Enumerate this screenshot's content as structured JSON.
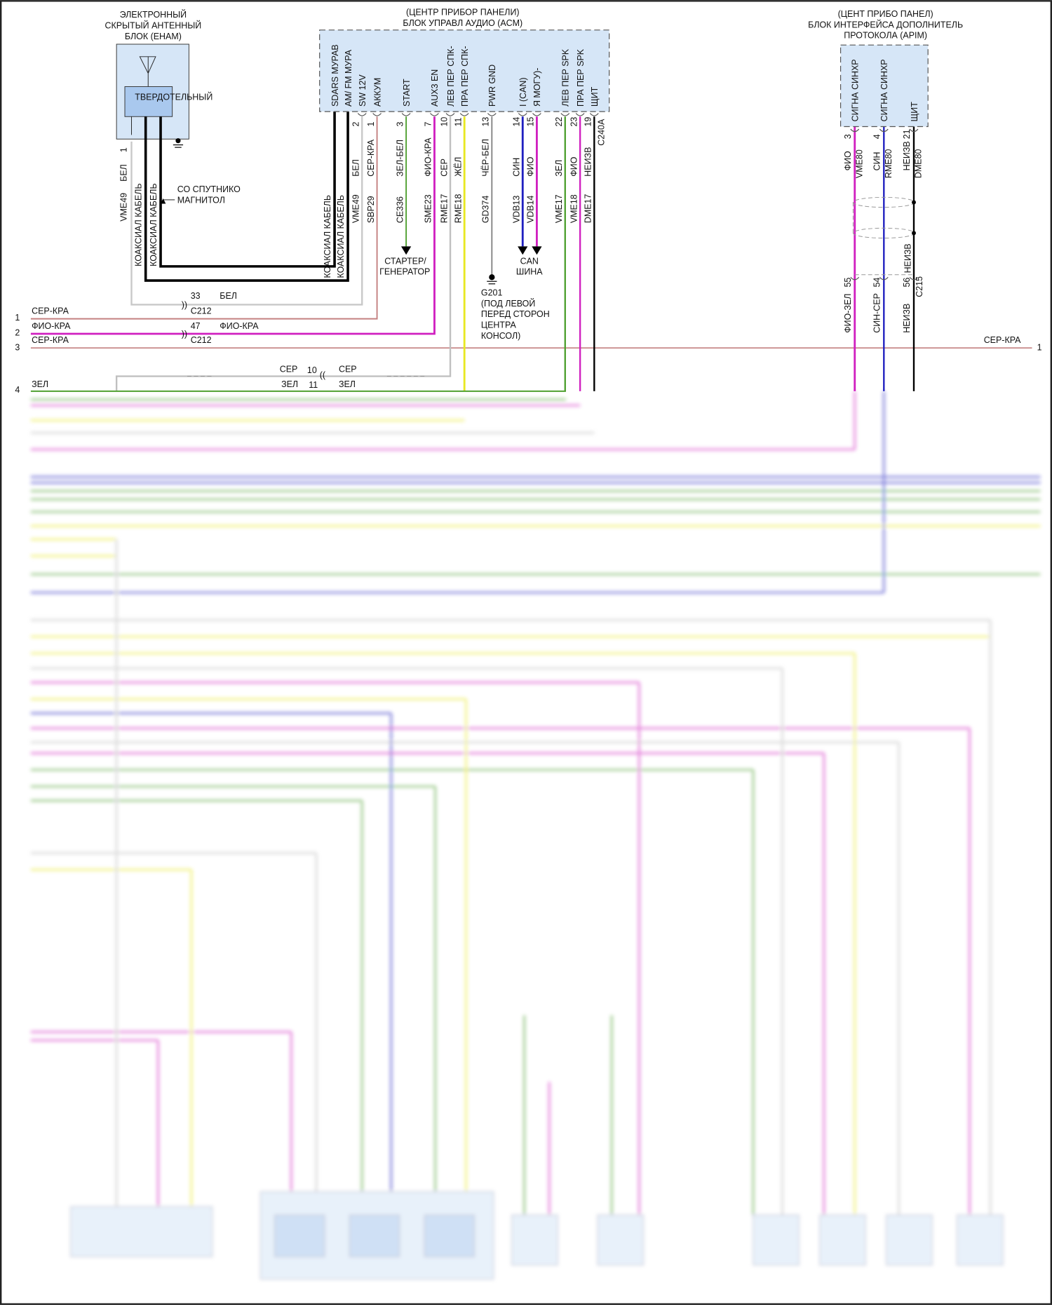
{
  "colors": {
    "module_fill": "#d6e6f7",
    "wire_pink": "#c48080",
    "wire_magenta": "#d020c0",
    "wire_green": "#4fa030",
    "wire_yellow": "#e8e820",
    "wire_gray": "#c0c0c0",
    "wire_blue": "#2020c0",
    "wire_black": "#000000"
  },
  "enham": {
    "title": [
      "ЭЛЕКТРОННЫЙ",
      "СКРЫТЫЙ АНТЕННЫЙ",
      "БЛОК (ЕНАМ)"
    ],
    "inner": "ТВЕРДОТЕЛЬНЫЙ",
    "pin": "1",
    "color": "БЕЛ",
    "circuit": "VME49",
    "coax1": "КОАКСИАЛ КАБЕЛЬ",
    "coax2": "КОАКСИАЛ КАБЕЛЬ",
    "from_label": [
      "СО СПУТНИКО",
      "МАГНИТОЛ"
    ],
    "icons": [
      "antenna-icon",
      "ground-icon"
    ]
  },
  "acm": {
    "title": [
      "(ЦЕНТР ПРИБОР ПАНЕЛИ)",
      "БЛОК УПРАВЛ АУДИО (ACM)"
    ],
    "connector": "C240A",
    "coax_labels": [
      "КОАКСИАЛ КАБЕЛЬ",
      "КОАКСИАЛ КАБЕЛЬ"
    ],
    "pins": [
      {
        "name": "SDARS МУРАВ",
        "num": "",
        "color": "",
        "circuit": ""
      },
      {
        "name": "AM/ FM МУРА",
        "num": "",
        "color": "",
        "circuit": ""
      },
      {
        "name": "SW 12V",
        "num": "2",
        "color": "БЕЛ",
        "circuit": "VME49"
      },
      {
        "name": "АККУМ",
        "num": "1",
        "color": "СЕР-КРА",
        "circuit": "SBP29"
      },
      {
        "name": "START",
        "num": "3",
        "color": "ЗЕЛ-БЕЛ",
        "circuit": "CE336"
      },
      {
        "name": "AUX3 EN",
        "num": "7",
        "color": "ФИО-КРА",
        "circuit": "SME23"
      },
      {
        "name": "ЛЕВ ПЕР СПК-",
        "num": "10",
        "color": "СЕР",
        "circuit": "RME17"
      },
      {
        "name": "ПРА ПЕР СПК-",
        "num": "11",
        "color": "ЖЁЛ",
        "circuit": "RME18"
      },
      {
        "name": "PWR GND",
        "num": "13",
        "color": "ЧЁР-БЕЛ",
        "circuit": "GD374"
      },
      {
        "name": "I (CAN)",
        "num": "14",
        "color": "СИН",
        "circuit": "VDB13"
      },
      {
        "name": "Я МОГУ)-",
        "num": "15",
        "color": "ФИО",
        "circuit": "VDB14"
      },
      {
        "name": "ЛЕВ ПЕР SPK",
        "num": "22",
        "color": "ЗЕЛ",
        "circuit": "VME17"
      },
      {
        "name": "ПРА ПЕР SPK",
        "num": "23",
        "color": "ФИО",
        "circuit": "VME18"
      },
      {
        "name": "ЩИТ",
        "num": "19",
        "color": "НЕИЗВ",
        "circuit": "DME17"
      }
    ]
  },
  "starter": [
    "СТАРТЕР/",
    "ГЕНЕРАТОР"
  ],
  "can": [
    "CAN",
    "ШИНА"
  ],
  "ground": [
    "G201",
    "(ПОД ЛЕВОЙ",
    "ПЕРЕД СТОРОН",
    "ЦЕНТРА",
    "КОНСОЛ)"
  ],
  "apim": {
    "title": [
      "(ЦЕНТ ПРИБО ПАНЕЛ)",
      "БЛОК ИНТЕРФЕЙСА ДОПОЛНИТЕЛЬ",
      "ПРОТОКОЛА (APIM)"
    ],
    "pins": [
      {
        "name": "СИГНА СИНХР",
        "num": "3",
        "color": "ФИО",
        "circuit": "VME80"
      },
      {
        "name": "СИГНА СИНХР",
        "num": "4",
        "color": "СИН",
        "circuit": "RME80"
      },
      {
        "name": "ЩИТ",
        "num": "21",
        "color": "НЕИЗВ",
        "circuit": "DME80"
      }
    ],
    "shield_label": "НЕИЗВ",
    "c215": {
      "connector": "C215",
      "pins": [
        {
          "num": "55",
          "color": "ФИО-ЗЕЛ"
        },
        {
          "num": "54",
          "color": "СИН-СЕР"
        },
        {
          "num": "56",
          "color": "НЕИЗВ"
        }
      ]
    }
  },
  "splices": {
    "s33": {
      "num": "33",
      "color": "БЕЛ",
      "connector": "C212"
    },
    "s47": {
      "num": "47",
      "color": "ФИО-КРА",
      "connector": "C212"
    },
    "s10": {
      "left": "СЕР",
      "num": "10",
      "right": "СЕР"
    },
    "s11": {
      "left": "ЗЕЛ",
      "num": "11",
      "right": "ЗЕЛ"
    }
  },
  "rows": [
    {
      "num": "1",
      "label": "СЕР-КРА"
    },
    {
      "num": "2",
      "label": "ФИО-КРА"
    },
    {
      "num": "3",
      "label": "СЕР-КРА"
    },
    {
      "num": "4",
      "label": "ЗЕЛ"
    }
  ],
  "right_row": {
    "label": "СЕР-КРА",
    "num": "1"
  }
}
